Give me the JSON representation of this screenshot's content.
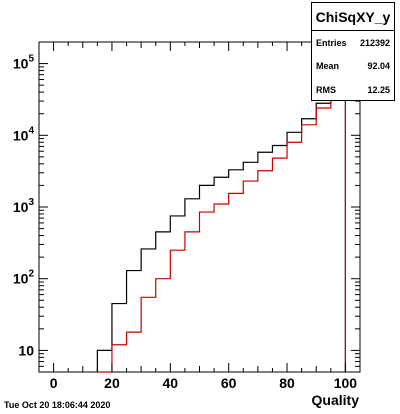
{
  "chart_data": {
    "type": "step",
    "title": "",
    "xlabel": "Quality",
    "ylabel": "",
    "xlim": [
      -5,
      105
    ],
    "ylim": [
      5,
      200000
    ],
    "y_scale": "log",
    "x_ticks": [
      "0",
      "20",
      "40",
      "60",
      "80",
      "100"
    ],
    "y_ticks": [
      {
        "base": "10",
        "exp": ""
      },
      {
        "base": "10",
        "exp": "2"
      },
      {
        "base": "10",
        "exp": "3"
      },
      {
        "base": "10",
        "exp": "4"
      },
      {
        "base": "10",
        "exp": "5"
      }
    ],
    "bin_edges": [
      15,
      20,
      25,
      30,
      35,
      40,
      45,
      50,
      55,
      60,
      65,
      70,
      75,
      80,
      85,
      90,
      95,
      100
    ],
    "series": [
      {
        "color": "#000000",
        "values": [
          10,
          45,
          130,
          260,
          450,
          750,
          1300,
          2000,
          2600,
          3300,
          4200,
          5800,
          7200,
          11000,
          17000,
          28000,
          95000
        ]
      },
      {
        "color": "#cc0000",
        "values": [
          0,
          12,
          18,
          55,
          100,
          250,
          450,
          850,
          1100,
          1550,
          2300,
          3200,
          4800,
          8000,
          14000,
          24000,
          100000
        ]
      }
    ]
  },
  "stats": {
    "title": "ChiSqXY_y",
    "entries_label": "Entries",
    "entries_value": "212392",
    "mean_label": "Mean",
    "mean_value": "92.04",
    "rms_label": "RMS",
    "rms_value": "12.25"
  },
  "timestamp": "Tue Oct 20 18:06:44 2020"
}
